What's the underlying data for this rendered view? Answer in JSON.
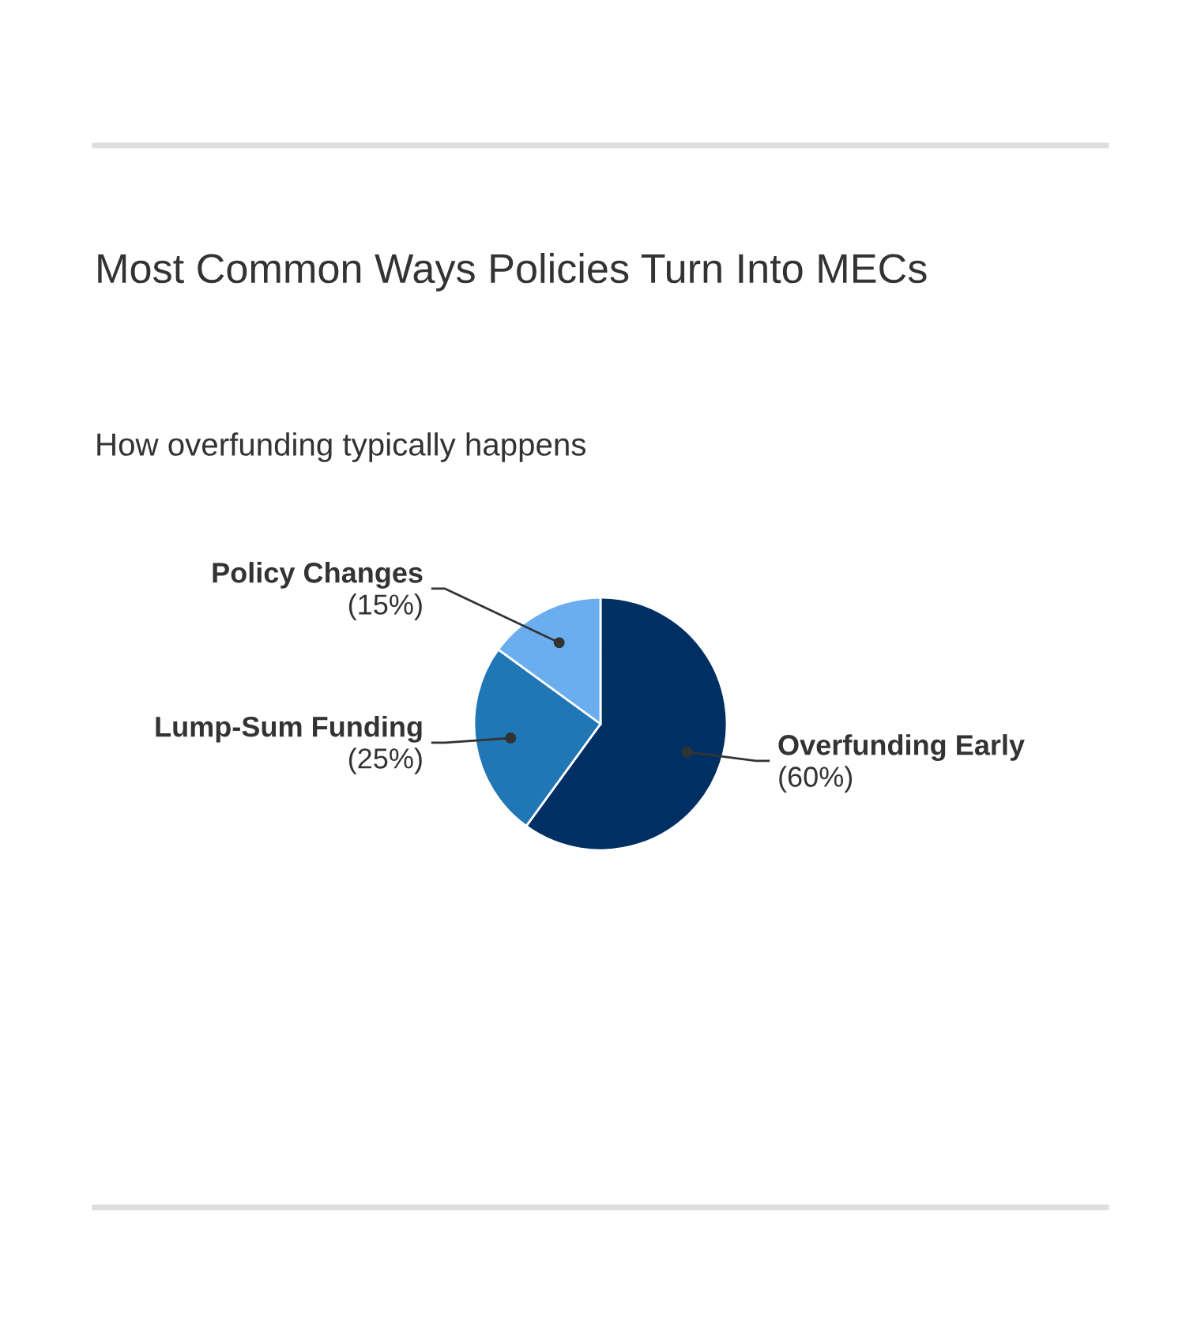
{
  "chart_data": {
    "type": "pie",
    "title": "Most Common Ways Policies Turn Into MECs",
    "subtitle": "How overfunding typically happens",
    "categories": [
      "Overfunding Early",
      "Lump-Sum Funding",
      "Policy Changes"
    ],
    "values": [
      60,
      25,
      15
    ],
    "colors": [
      "#003063",
      "#2176b6",
      "#6aaef0"
    ],
    "value_labels": [
      "(60%)",
      "(25%)",
      "(15%)"
    ]
  }
}
